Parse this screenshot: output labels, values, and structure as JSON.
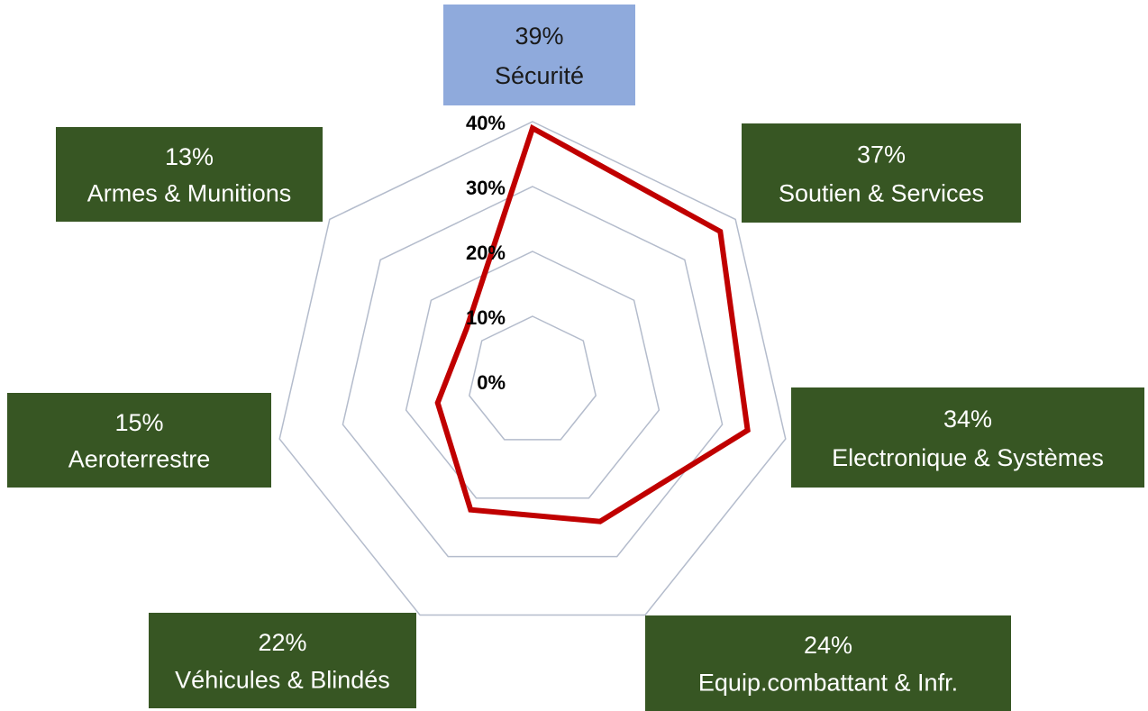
{
  "chart_data": {
    "type": "radar",
    "categories": [
      "Sécurité",
      "Soutien & Services",
      "Electronique & Systèmes",
      "Equip.combattant & Infr.",
      "Véhicules & Blindés",
      "Aeroterrestre",
      "Armes & Munitions"
    ],
    "values": [
      39,
      37,
      34,
      24,
      22,
      15,
      13
    ],
    "value_labels": [
      "39%",
      "37%",
      "34%",
      "24%",
      "22%",
      "15%",
      "13%"
    ],
    "color": "#c00000",
    "label_colors": [
      "#8faadc",
      "#375623",
      "#375623",
      "#375623",
      "#375623",
      "#375623",
      "#375623"
    ],
    "ylim": [
      0,
      40
    ],
    "yticks": [
      {
        "value": 0,
        "label": "0%"
      },
      {
        "value": 10,
        "label": "10%"
      },
      {
        "value": 20,
        "label": "20%"
      },
      {
        "value": 30,
        "label": "30%"
      },
      {
        "value": 40,
        "label": "40%"
      }
    ],
    "grid": true
  }
}
